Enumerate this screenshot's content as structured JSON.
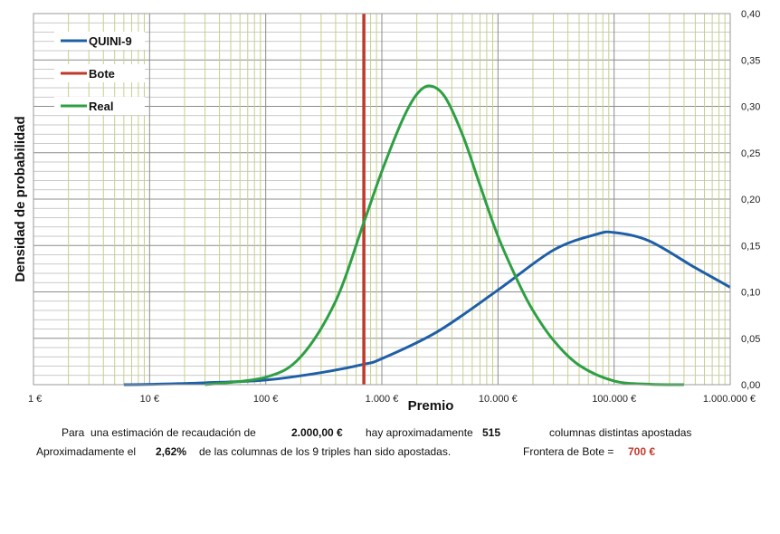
{
  "chart_data": {
    "type": "line",
    "x_scale": "log10",
    "xlabel": "Premio",
    "ylabel": "Densidad de probabilidad",
    "xlim": [
      1,
      1000000
    ],
    "ylim": [
      0,
      0.4
    ],
    "x_ticks": [
      "1 €",
      "10 €",
      "100 €",
      "1.000 €",
      "10.000 €",
      "100.000 €",
      "1.000.000 €"
    ],
    "y_ticks": [
      "0,00",
      "0,05",
      "0,10",
      "0,15",
      "0,20",
      "0,25",
      "0,30",
      "0,35",
      "0,40"
    ],
    "legend": [
      "QUINI-9",
      "Bote",
      "Real"
    ],
    "legend_position": "top-left",
    "series": [
      {
        "name": "QUINI-9",
        "color": "#1f5fa6",
        "x": [
          6,
          10,
          30,
          100,
          300,
          700,
          1000,
          3000,
          10000,
          30000,
          70000,
          100000,
          200000,
          500000,
          1000000
        ],
        "y": [
          0.0,
          0.0004,
          0.002,
          0.005,
          0.013,
          0.022,
          0.028,
          0.057,
          0.102,
          0.145,
          0.162,
          0.164,
          0.155,
          0.126,
          0.105
        ]
      },
      {
        "name": "Bote",
        "color": "#c0392b",
        "x": [
          700,
          700
        ],
        "y": [
          0.0,
          0.4
        ]
      },
      {
        "name": "Real",
        "color": "#2ea043",
        "x": [
          30,
          100,
          200,
          400,
          700,
          1000,
          1500,
          2000,
          2600,
          3500,
          5000,
          7000,
          10000,
          15000,
          20000,
          30000,
          50000,
          100000,
          200000,
          400000
        ],
        "y": [
          0.0,
          0.008,
          0.03,
          0.09,
          0.175,
          0.23,
          0.285,
          0.313,
          0.322,
          0.31,
          0.268,
          0.215,
          0.16,
          0.11,
          0.08,
          0.048,
          0.021,
          0.004,
          0.0005,
          0.0
        ]
      }
    ]
  },
  "footer": {
    "line1": {
      "prefix": "Para  una estimación de recaudación de",
      "amount": "2.000,00 €",
      "middle": "hay aproximadamente",
      "count": "515",
      "suffix": "columnas distintas apostadas"
    },
    "line2": {
      "prefix": "Aproximadamente el",
      "percent": "2,62%",
      "middle": "de las columnas de los 9 triples han sido apostadas.",
      "frontier_label": "Frontera de Bote =",
      "frontier_value": "700 €"
    }
  }
}
